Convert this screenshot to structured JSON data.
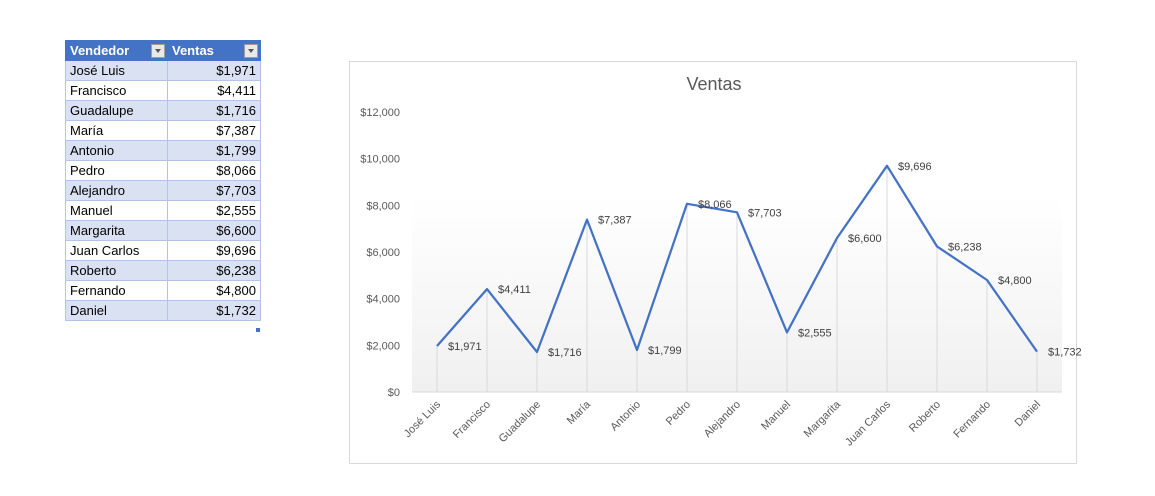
{
  "table": {
    "headers": [
      "Vendedor",
      "Ventas"
    ],
    "rows": [
      {
        "vendedor": "José Luis",
        "ventas": "$1,971"
      },
      {
        "vendedor": "Francisco",
        "ventas": "$4,411"
      },
      {
        "vendedor": "Guadalupe",
        "ventas": "$1,716"
      },
      {
        "vendedor": "María",
        "ventas": "$7,387"
      },
      {
        "vendedor": "Antonio",
        "ventas": "$1,799"
      },
      {
        "vendedor": "Pedro",
        "ventas": "$8,066"
      },
      {
        "vendedor": "Alejandro",
        "ventas": "$7,703"
      },
      {
        "vendedor": "Manuel",
        "ventas": "$2,555"
      },
      {
        "vendedor": "Margarita",
        "ventas": "$6,600"
      },
      {
        "vendedor": "Juan Carlos",
        "ventas": "$9,696"
      },
      {
        "vendedor": "Roberto",
        "ventas": "$6,238"
      },
      {
        "vendedor": "Fernando",
        "ventas": "$4,800"
      },
      {
        "vendedor": "Daniel",
        "ventas": "$1,732"
      }
    ],
    "header_color": "#4472c4",
    "band_color": "#d9e1f2"
  },
  "chart_data": {
    "type": "line",
    "title": "Ventas",
    "categories": [
      "José Luis",
      "Francisco",
      "Guadalupe",
      "María",
      "Antonio",
      "Pedro",
      "Alejandro",
      "Manuel",
      "Margarita",
      "Juan Carlos",
      "Roberto",
      "Fernando",
      "Daniel"
    ],
    "series": [
      {
        "values": [
          1971,
          4411,
          1716,
          7387,
          1799,
          8066,
          7703,
          2555,
          6600,
          9696,
          6238,
          4800,
          1732
        ],
        "data_labels": [
          "$1,971",
          "$4,411",
          "$1,716",
          "$7,387",
          "$1,799",
          "$8,066",
          "$7,703",
          "$2,555",
          "$6,600",
          "$9,696",
          "$6,238",
          "$4,800",
          "$1,732"
        ],
        "color": "#4472c4"
      }
    ],
    "ylim": [
      0,
      12000
    ],
    "yticks": [
      "$0",
      "$2,000",
      "$4,000",
      "$6,000",
      "$8,000",
      "$10,000",
      "$12,000"
    ],
    "grid": "vertical drop lines",
    "legend": "none"
  }
}
